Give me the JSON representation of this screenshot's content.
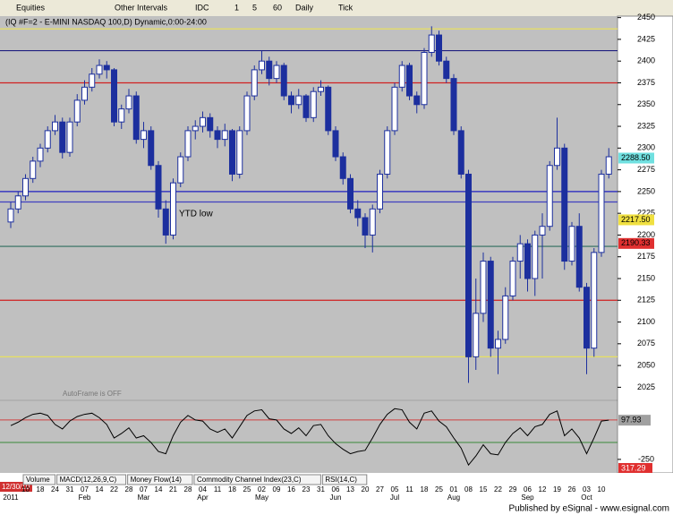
{
  "toolbar": {
    "items": [
      "Equities",
      "Other Intervals",
      "IDC",
      "1",
      "5",
      "60",
      "Daily",
      "Tick"
    ]
  },
  "chart_data": {
    "type": "candlestick",
    "title": "(IQ #F=2 - E-MINI NASDAQ 100,D) Dynamic,0:00-24:00",
    "categories": [
      null,
      null,
      "10",
      null,
      "18",
      null,
      "24",
      null,
      "31",
      null,
      "07",
      null,
      "14",
      null,
      "22",
      null,
      "28",
      null,
      "07",
      null,
      "14",
      null,
      "21",
      null,
      "28",
      null,
      "04",
      null,
      "11",
      null,
      "18",
      null,
      "25",
      null,
      "02",
      null,
      "09",
      null,
      "16",
      null,
      "23",
      null,
      "31",
      null,
      "06",
      null,
      "13",
      null,
      "20",
      null,
      "27",
      null,
      "05",
      null,
      "11",
      null,
      "18",
      null,
      "25",
      null,
      "01",
      null,
      "08",
      null,
      "15",
      null,
      "22",
      null,
      "29",
      null,
      "06",
      null,
      "12",
      null,
      "19",
      null,
      "26",
      null,
      "03",
      null,
      "10",
      null
    ],
    "months": [
      "2011",
      null,
      null,
      null,
      null,
      null,
      null,
      null,
      null,
      null,
      "Feb",
      null,
      null,
      null,
      null,
      null,
      null,
      null,
      "Mar",
      null,
      null,
      null,
      null,
      null,
      null,
      null,
      "Apr",
      null,
      null,
      null,
      null,
      null,
      null,
      null,
      "May",
      null,
      null,
      null,
      null,
      null,
      null,
      null,
      null,
      null,
      "Jun",
      null,
      null,
      null,
      null,
      null,
      null,
      null,
      "Jul",
      null,
      null,
      null,
      null,
      null,
      null,
      null,
      "Aug",
      null,
      null,
      null,
      null,
      null,
      null,
      null,
      null,
      null,
      "Sep",
      null,
      null,
      null,
      null,
      null,
      null,
      null,
      "Oct",
      null,
      null,
      null
    ],
    "ohlc": [
      [
        2215,
        2238,
        2208,
        2230
      ],
      [
        2230,
        2250,
        2225,
        2245
      ],
      [
        2245,
        2270,
        2240,
        2265
      ],
      [
        2265,
        2290,
        2260,
        2285
      ],
      [
        2285,
        2305,
        2278,
        2300
      ],
      [
        2300,
        2325,
        2295,
        2320
      ],
      [
        2320,
        2338,
        2315,
        2330
      ],
      [
        2330,
        2335,
        2288,
        2295
      ],
      [
        2295,
        2335,
        2290,
        2330
      ],
      [
        2330,
        2362,
        2325,
        2355
      ],
      [
        2355,
        2378,
        2350,
        2370
      ],
      [
        2370,
        2392,
        2365,
        2385
      ],
      [
        2385,
        2402,
        2380,
        2395
      ],
      [
        2395,
        2400,
        2380,
        2390
      ],
      [
        2390,
        2392,
        2325,
        2330
      ],
      [
        2330,
        2350,
        2322,
        2345
      ],
      [
        2345,
        2368,
        2340,
        2360
      ],
      [
        2360,
        2365,
        2305,
        2310
      ],
      [
        2310,
        2330,
        2300,
        2320
      ],
      [
        2320,
        2325,
        2275,
        2280
      ],
      [
        2280,
        2285,
        2220,
        2230
      ],
      [
        2230,
        2240,
        2190,
        2200
      ],
      [
        2200,
        2265,
        2195,
        2260
      ],
      [
        2260,
        2295,
        2255,
        2290
      ],
      [
        2290,
        2325,
        2285,
        2320
      ],
      [
        2320,
        2332,
        2310,
        2325
      ],
      [
        2325,
        2342,
        2318,
        2335
      ],
      [
        2335,
        2340,
        2312,
        2320
      ],
      [
        2320,
        2325,
        2300,
        2310
      ],
      [
        2310,
        2328,
        2302,
        2320
      ],
      [
        2320,
        2322,
        2262,
        2270
      ],
      [
        2270,
        2325,
        2265,
        2320
      ],
      [
        2320,
        2365,
        2315,
        2360
      ],
      [
        2360,
        2395,
        2355,
        2390
      ],
      [
        2390,
        2412,
        2385,
        2400
      ],
      [
        2400,
        2405,
        2372,
        2380
      ],
      [
        2380,
        2400,
        2375,
        2395
      ],
      [
        2395,
        2398,
        2355,
        2360
      ],
      [
        2360,
        2365,
        2340,
        2350
      ],
      [
        2350,
        2368,
        2345,
        2360
      ],
      [
        2360,
        2362,
        2330,
        2335
      ],
      [
        2335,
        2370,
        2330,
        2365
      ],
      [
        2365,
        2378,
        2360,
        2370
      ],
      [
        2370,
        2372,
        2315,
        2320
      ],
      [
        2320,
        2325,
        2285,
        2290
      ],
      [
        2290,
        2295,
        2258,
        2265
      ],
      [
        2265,
        2270,
        2225,
        2230
      ],
      [
        2230,
        2240,
        2210,
        2220
      ],
      [
        2220,
        2225,
        2185,
        2200
      ],
      [
        2200,
        2235,
        2180,
        2230
      ],
      [
        2230,
        2275,
        2225,
        2270
      ],
      [
        2270,
        2325,
        2265,
        2320
      ],
      [
        2320,
        2375,
        2315,
        2370
      ],
      [
        2370,
        2400,
        2365,
        2395
      ],
      [
        2395,
        2398,
        2355,
        2360
      ],
      [
        2360,
        2365,
        2340,
        2350
      ],
      [
        2350,
        2415,
        2345,
        2410
      ],
      [
        2410,
        2440,
        2405,
        2430
      ],
      [
        2430,
        2435,
        2395,
        2400
      ],
      [
        2400,
        2405,
        2375,
        2380
      ],
      [
        2380,
        2385,
        2315,
        2320
      ],
      [
        2320,
        2325,
        2265,
        2270
      ],
      [
        2270,
        2275,
        2030,
        2060
      ],
      [
        2060,
        2150,
        2045,
        2110
      ],
      [
        2110,
        2180,
        2100,
        2170
      ],
      [
        2170,
        2175,
        2060,
        2070
      ],
      [
        2070,
        2090,
        2040,
        2080
      ],
      [
        2080,
        2140,
        2075,
        2130
      ],
      [
        2130,
        2175,
        2125,
        2170
      ],
      [
        2170,
        2200,
        2150,
        2190
      ],
      [
        2190,
        2195,
        2135,
        2150
      ],
      [
        2150,
        2205,
        2130,
        2200
      ],
      [
        2200,
        2225,
        2150,
        2210
      ],
      [
        2210,
        2285,
        2205,
        2280
      ],
      [
        2280,
        2335,
        2275,
        2300
      ],
      [
        2300,
        2305,
        2160,
        2170
      ],
      [
        2170,
        2215,
        2165,
        2210
      ],
      [
        2210,
        2225,
        2135,
        2140
      ],
      [
        2140,
        2145,
        2040,
        2070
      ],
      [
        2070,
        2185,
        2060,
        2180
      ],
      [
        2180,
        2275,
        2175,
        2270
      ],
      [
        2270,
        2300,
        2265,
        2290
      ]
    ],
    "colors": {
      "up": "#ffffff",
      "down": "#1c2f9e",
      "wick": "#1c2f9e"
    },
    "ylim": [
      2012,
      2462
    ],
    "yticks": [
      2450,
      2425,
      2400,
      2375,
      2350,
      2325,
      2300,
      2275,
      2250,
      2225,
      2200,
      2175,
      2150,
      2125,
      2100,
      2075,
      2050,
      2025
    ],
    "levels": [
      {
        "value": 2437,
        "color": "#e8e060"
      },
      {
        "value": 2412,
        "color": "#202080"
      },
      {
        "value": 2375,
        "color": "#d02020"
      },
      {
        "value": 2250,
        "color": "#2020c0"
      },
      {
        "value": 2238,
        "color": "#4040c0"
      },
      {
        "value": 2187,
        "color": "#2e6e5e"
      },
      {
        "value": 2125,
        "color": "#d02020"
      },
      {
        "value": 2060,
        "color": "#e8e060"
      }
    ],
    "price_flags": [
      {
        "value": 2288.5,
        "label": "2288.50",
        "color": "#70e0e0"
      },
      {
        "value": 2217.5,
        "label": "2217.50",
        "color": "#f0e040"
      },
      {
        "value": 2190.33,
        "label": "2190.33",
        "color": "#e03030"
      }
    ],
    "annotations": [
      "YTD low",
      "AutoFrame is OFF"
    ],
    "cursor_date": "12/30/10"
  },
  "lower_pane": {
    "type": "line",
    "values": [
      50,
      80,
      120,
      150,
      160,
      140,
      60,
      20,
      90,
      130,
      150,
      160,
      120,
      60,
      -60,
      -20,
      30,
      -60,
      -40,
      -100,
      -180,
      -200,
      -40,
      80,
      140,
      100,
      90,
      20,
      -10,
      20,
      -60,
      40,
      140,
      180,
      190,
      110,
      100,
      20,
      -20,
      30,
      -40,
      50,
      60,
      -40,
      -110,
      -160,
      -200,
      -180,
      -170,
      -60,
      60,
      150,
      200,
      190,
      80,
      20,
      160,
      180,
      90,
      40,
      -60,
      -150,
      -300,
      -220,
      -120,
      -200,
      -210,
      -100,
      -20,
      30,
      -40,
      40,
      60,
      150,
      180,
      -40,
      20,
      -60,
      -200,
      -60,
      90,
      97.93
    ],
    "ylim": [
      -370,
      250
    ],
    "yticks": [
      -250
    ],
    "levels": [
      {
        "value": 100,
        "color": "#d04040"
      },
      {
        "value": -100,
        "color": "#3a8a3a"
      }
    ],
    "last_flag": {
      "value": 97.93,
      "label": "97.93"
    },
    "extra_flag": "317.29"
  },
  "tabs": [
    "Volume",
    "MACD(12,26,9,C)",
    "Money Flow(14)",
    "Commodity Channel Index(23,C)",
    "RSI(14,C)"
  ],
  "footer": "Published by eSignal - www.esignal.com"
}
